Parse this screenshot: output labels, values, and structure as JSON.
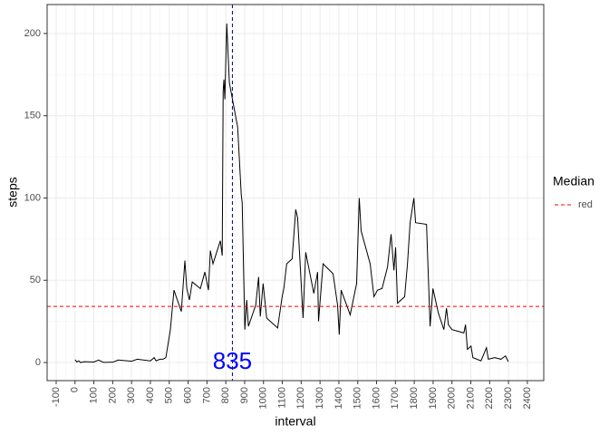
{
  "chart_data": {
    "type": "line",
    "x_label": "interval",
    "y_label": "steps",
    "xlim": [
      -148,
      2487
    ],
    "ylim": [
      -11,
      217.6
    ],
    "xticks": [
      -100,
      0,
      100,
      200,
      300,
      400,
      500,
      600,
      700,
      800,
      900,
      1000,
      1100,
      1200,
      1300,
      1400,
      1500,
      1600,
      1700,
      1800,
      1900,
      2000,
      2100,
      2200,
      2300,
      2400
    ],
    "yticks": [
      0,
      50,
      100,
      150,
      200
    ],
    "grid": true,
    "x": [
      0,
      10,
      20,
      30,
      50,
      100,
      125,
      150,
      200,
      230,
      300,
      330,
      400,
      420,
      430,
      450,
      467,
      482,
      506,
      525,
      564,
      583,
      593,
      607,
      622,
      665,
      689,
      708,
      718,
      732,
      771,
      781,
      786,
      790,
      795,
      805,
      819,
      863,
      882,
      887,
      901,
      911,
      920,
      959,
      974,
      983,
      998,
      1017,
      1075,
      1099,
      1108,
      1123,
      1152,
      1171,
      1181,
      1210,
      1224,
      1267,
      1287,
      1292,
      1316,
      1369,
      1393,
      1402,
      1412,
      1460,
      1494,
      1508,
      1518,
      1566,
      1586,
      1605,
      1629,
      1658,
      1677,
      1692,
      1701,
      1711,
      1749,
      1764,
      1778,
      1798,
      1807,
      1865,
      1884,
      1899,
      1928,
      1957,
      1971,
      1981,
      2000,
      2063,
      2072,
      2082,
      2101,
      2111,
      2154,
      2183,
      2193,
      2227,
      2260,
      2284,
      2299
    ],
    "series": [
      {
        "name": "steps",
        "color": "#000000",
        "values": [
          1.7,
          0.3,
          1,
          0,
          0.5,
          0.3,
          1.5,
          0.1,
          0.2,
          1.5,
          0.8,
          2,
          1,
          3,
          1,
          2,
          2,
          3,
          20,
          44,
          31,
          62,
          45,
          38,
          49,
          45,
          55,
          44,
          68,
          60,
          74,
          65,
          165,
          172,
          160,
          206,
          170,
          143,
          102,
          97,
          20,
          38,
          22,
          35,
          52,
          28,
          48,
          27,
          21,
          40,
          45,
          60,
          63,
          93,
          88,
          27,
          67,
          42,
          55,
          25,
          60,
          54,
          35,
          17,
          44,
          29,
          48,
          100,
          80,
          60,
          40,
          44,
          45,
          58,
          78,
          56,
          70,
          36,
          40,
          60,
          85,
          100,
          85,
          84,
          22,
          45,
          30,
          20,
          33,
          23,
          20,
          18,
          23,
          8,
          10,
          3,
          1,
          9,
          2,
          3,
          2,
          4,
          0.5
        ]
      }
    ],
    "vline": {
      "value": 835,
      "color": "#00008b"
    },
    "hline": {
      "value": 34.1,
      "color": "#ff0000",
      "name": "red"
    },
    "legend_title": "Median",
    "annotation": {
      "text": "835",
      "x": 835,
      "y": 0,
      "color": "#0000ff"
    }
  }
}
